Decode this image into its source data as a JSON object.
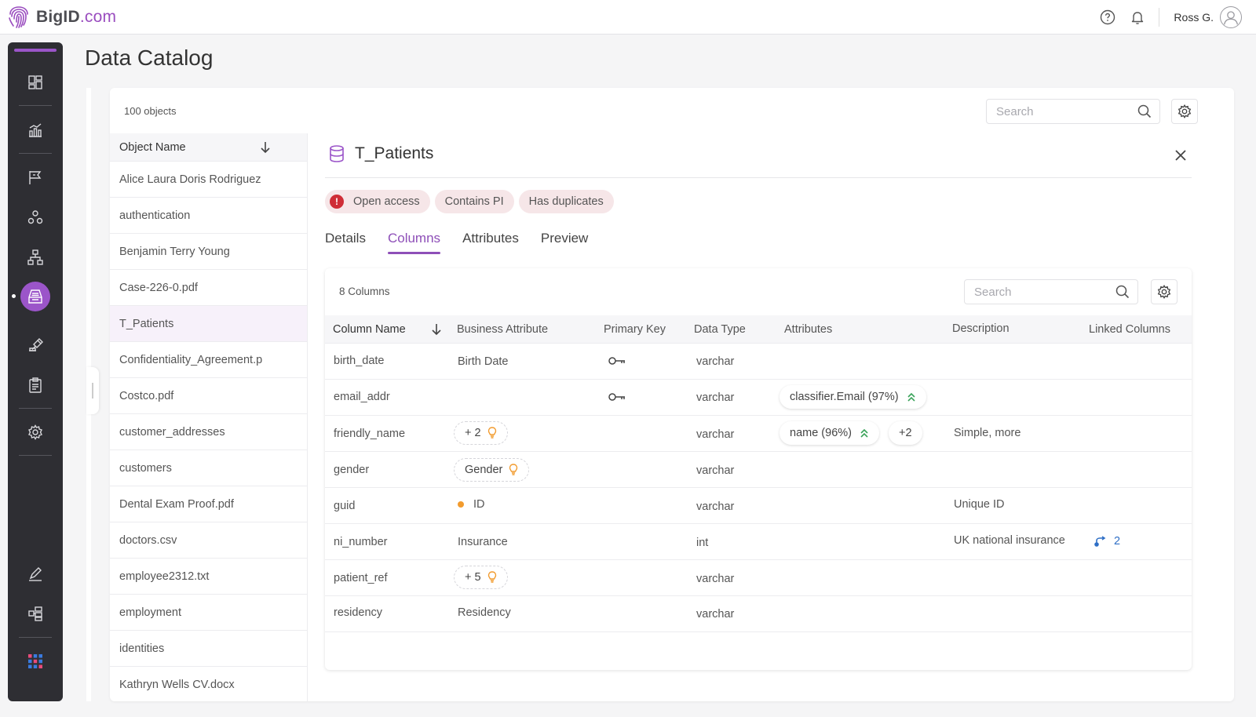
{
  "app": {
    "logo_text": "BigID",
    "logo_suffix": ".com",
    "user_name": "Ross G."
  },
  "page": {
    "title": "Data Catalog",
    "objects_count": "100 objects",
    "search_placeholder": "Search"
  },
  "object_list": {
    "header": "Object Name",
    "items": [
      "Alice Laura Doris Rodriguez",
      "authentication",
      "Benjamin Terry Young",
      "Case-226-0.pdf",
      "T_Patients",
      "Confidentiality_Agreement.p",
      "Costco.pdf",
      "customer_addresses",
      "customers",
      "Dental Exam Proof.pdf",
      "doctors.csv",
      "employee2312.txt",
      "employment",
      "identities",
      "Kathryn Wells CV.docx"
    ],
    "selected": "T_Patients"
  },
  "detail": {
    "title": "T_Patients",
    "chips": [
      "Open access",
      "Contains PI",
      "Has duplicates"
    ],
    "alert_symbol": "!",
    "tabs": [
      "Details",
      "Columns",
      "Attributes",
      "Preview"
    ],
    "active_tab": "Columns",
    "columns_count": "8 Columns",
    "search_placeholder": "Search",
    "headers": {
      "column_name": "Column Name",
      "business_attribute": "Business Attribute",
      "primary_key": "Primary Key",
      "data_type": "Data Type",
      "attributes": "Attributes",
      "description": "Description",
      "linked_columns": "Linked Columns"
    },
    "rows": [
      {
        "name": "birth_date",
        "business_attribute": "Birth Date",
        "data_type": "varchar"
      },
      {
        "name": "email_addr",
        "data_type": "varchar",
        "attribute": "classifier.Email (97%)"
      },
      {
        "name": "friendly_name",
        "business_pill": "+ 2",
        "data_type": "varchar",
        "attribute": "name (96%)",
        "attribute_more": "+2",
        "description": "Simple, more"
      },
      {
        "name": "gender",
        "business_pill": "Gender",
        "data_type": "varchar"
      },
      {
        "name": "guid",
        "business_attribute": "ID",
        "data_type": "varchar",
        "description": "Unique ID"
      },
      {
        "name": "ni_number",
        "business_attribute": "Insurance",
        "data_type": "int",
        "description": "UK national insurance",
        "linked": "2"
      },
      {
        "name": "patient_ref",
        "business_pill": "+ 5",
        "data_type": "varchar"
      },
      {
        "name": "residency",
        "business_attribute": "Residency",
        "data_type": "varchar"
      }
    ]
  },
  "colors": {
    "accent": "#9b55c9",
    "nav_bg": "#2e2e33",
    "alert": "#cf2d37",
    "chip_bg": "#f6e6e8",
    "link": "#2f6fc6",
    "bulb": "#f29b2e",
    "confidence": "#3aa35a"
  }
}
